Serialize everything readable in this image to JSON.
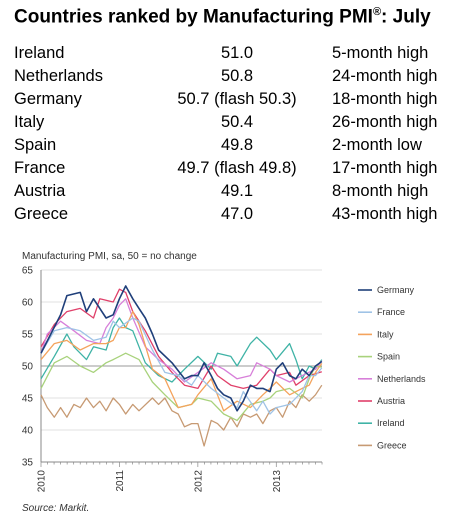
{
  "header": {
    "title": "Countries ranked by Manufacturing PMI",
    "title_sup": "®",
    "title_suffix": ": July"
  },
  "table": {
    "rows": [
      {
        "country": "Ireland",
        "value": "51.0",
        "note": "5-month high"
      },
      {
        "country": "Netherlands",
        "value": "50.8",
        "note": "24-month high"
      },
      {
        "country": "Germany",
        "value": "50.7 (flash 50.3)",
        "note": "18-month high"
      },
      {
        "country": "Italy",
        "value": "50.4",
        "note": "26-month high"
      },
      {
        "country": "Spain",
        "value": "49.8",
        "note": "2-month low"
      },
      {
        "country": "France",
        "value": "49.7 (flash 49.8)",
        "note": "17-month high"
      },
      {
        "country": "Austria",
        "value": "49.1",
        "note": "8-month high"
      },
      {
        "country": "Greece",
        "value": "47.0",
        "note": "43-month high"
      }
    ]
  },
  "source": "Source: Markit.",
  "chart_data": {
    "type": "line",
    "title": "Manufacturing PMI, sa, 50 = no change",
    "xlabel": "",
    "ylabel": "",
    "ylim": [
      35,
      65
    ],
    "yticks": [
      "65",
      "60",
      "55",
      "50",
      "45",
      "40",
      "35"
    ],
    "yticks_values": [
      65,
      60,
      55,
      50,
      45,
      40,
      35
    ],
    "xticks": [
      "2010",
      "2011",
      "2012",
      "2013"
    ],
    "xticks_values": [
      2010,
      2011,
      2012,
      2013
    ],
    "xlim": [
      2010.0,
      2013.583
    ],
    "reference_line": 50,
    "grid": true,
    "legend_position": "right",
    "series": [
      {
        "name": "Germany",
        "color": "#1f3f7a",
        "points": [
          [
            2010.0,
            52.0
          ],
          [
            2010.25,
            58.0
          ],
          [
            2010.33,
            61.0
          ],
          [
            2010.5,
            61.5
          ],
          [
            2010.58,
            58.5
          ],
          [
            2010.67,
            60.5
          ],
          [
            2010.83,
            57.5
          ],
          [
            2010.92,
            58.0
          ],
          [
            2011.0,
            60.5
          ],
          [
            2011.08,
            62.5
          ],
          [
            2011.17,
            60.5
          ],
          [
            2011.25,
            59.0
          ],
          [
            2011.33,
            57.5
          ],
          [
            2011.42,
            55.0
          ],
          [
            2011.5,
            52.5
          ],
          [
            2011.67,
            50.5
          ],
          [
            2011.83,
            48.0
          ],
          [
            2011.92,
            48.5
          ],
          [
            2012.0,
            48.5
          ],
          [
            2012.08,
            50.5
          ],
          [
            2012.17,
            48.5
          ],
          [
            2012.25,
            46.5
          ],
          [
            2012.33,
            45.5
          ],
          [
            2012.42,
            45.0
          ],
          [
            2012.5,
            43.0
          ],
          [
            2012.58,
            44.5
          ],
          [
            2012.67,
            47.0
          ],
          [
            2012.75,
            46.5
          ],
          [
            2012.83,
            46.5
          ],
          [
            2012.92,
            46.0
          ],
          [
            2013.0,
            49.5
          ],
          [
            2013.08,
            50.5
          ],
          [
            2013.17,
            48.5
          ],
          [
            2013.25,
            48.0
          ],
          [
            2013.33,
            49.5
          ],
          [
            2013.42,
            48.5
          ],
          [
            2013.5,
            50.0
          ],
          [
            2013.58,
            50.7
          ]
        ]
      },
      {
        "name": "France",
        "color": "#9fc3e6",
        "points": [
          [
            2010.0,
            52.0
          ],
          [
            2010.17,
            55.5
          ],
          [
            2010.33,
            56.0
          ],
          [
            2010.5,
            55.5
          ],
          [
            2010.67,
            54.0
          ],
          [
            2010.83,
            54.5
          ],
          [
            2010.92,
            57.0
          ],
          [
            2011.0,
            56.0
          ],
          [
            2011.17,
            57.5
          ],
          [
            2011.25,
            57.0
          ],
          [
            2011.42,
            52.5
          ],
          [
            2011.58,
            49.0
          ],
          [
            2011.75,
            48.5
          ],
          [
            2011.92,
            47.0
          ],
          [
            2012.0,
            48.5
          ],
          [
            2012.17,
            46.5
          ],
          [
            2012.33,
            45.0
          ],
          [
            2012.5,
            43.5
          ],
          [
            2012.58,
            46.0
          ],
          [
            2012.75,
            43.0
          ],
          [
            2012.83,
            44.5
          ],
          [
            2012.92,
            42.5
          ],
          [
            2013.0,
            43.5
          ],
          [
            2013.17,
            44.0
          ],
          [
            2013.33,
            46.0
          ],
          [
            2013.42,
            48.5
          ],
          [
            2013.5,
            48.5
          ],
          [
            2013.58,
            49.7
          ]
        ]
      },
      {
        "name": "Italy",
        "color": "#f4a35c",
        "points": [
          [
            2010.0,
            51.0
          ],
          [
            2010.17,
            53.5
          ],
          [
            2010.33,
            54.0
          ],
          [
            2010.5,
            52.5
          ],
          [
            2010.67,
            53.5
          ],
          [
            2010.83,
            53.5
          ],
          [
            2010.92,
            54.0
          ],
          [
            2011.0,
            56.0
          ],
          [
            2011.08,
            56.0
          ],
          [
            2011.17,
            58.5
          ],
          [
            2011.25,
            56.5
          ],
          [
            2011.42,
            49.5
          ],
          [
            2011.58,
            48.0
          ],
          [
            2011.75,
            43.5
          ],
          [
            2011.92,
            44.0
          ],
          [
            2012.0,
            45.5
          ],
          [
            2012.17,
            48.0
          ],
          [
            2012.33,
            43.0
          ],
          [
            2012.5,
            44.5
          ],
          [
            2012.67,
            43.5
          ],
          [
            2012.83,
            45.5
          ],
          [
            2012.92,
            46.5
          ],
          [
            2013.0,
            47.5
          ],
          [
            2013.17,
            45.5
          ],
          [
            2013.33,
            46.5
          ],
          [
            2013.42,
            47.0
          ],
          [
            2013.5,
            49.0
          ],
          [
            2013.58,
            50.4
          ]
        ]
      },
      {
        "name": "Spain",
        "color": "#a8d27c",
        "points": [
          [
            2010.0,
            46.5
          ],
          [
            2010.17,
            50.5
          ],
          [
            2010.33,
            51.5
          ],
          [
            2010.5,
            50.0
          ],
          [
            2010.67,
            49.0
          ],
          [
            2010.83,
            50.5
          ],
          [
            2010.92,
            51.0
          ],
          [
            2011.0,
            51.5
          ],
          [
            2011.08,
            52.0
          ],
          [
            2011.25,
            51.0
          ],
          [
            2011.42,
            47.5
          ],
          [
            2011.58,
            45.5
          ],
          [
            2011.75,
            43.5
          ],
          [
            2011.92,
            44.0
          ],
          [
            2012.0,
            45.0
          ],
          [
            2012.17,
            44.5
          ],
          [
            2012.33,
            42.5
          ],
          [
            2012.5,
            41.5
          ],
          [
            2012.67,
            44.0
          ],
          [
            2012.83,
            44.5
          ],
          [
            2012.92,
            45.0
          ],
          [
            2013.0,
            46.0
          ],
          [
            2013.17,
            46.5
          ],
          [
            2013.33,
            45.0
          ],
          [
            2013.42,
            48.0
          ],
          [
            2013.5,
            50.0
          ],
          [
            2013.58,
            49.8
          ]
        ]
      },
      {
        "name": "Netherlands",
        "color": "#d77fd9",
        "points": [
          [
            2010.0,
            52.0
          ],
          [
            2010.08,
            55.0
          ],
          [
            2010.25,
            57.0
          ],
          [
            2010.42,
            55.5
          ],
          [
            2010.58,
            54.0
          ],
          [
            2010.75,
            53.5
          ],
          [
            2010.83,
            56.0
          ],
          [
            2010.92,
            57.5
          ],
          [
            2011.0,
            59.5
          ],
          [
            2011.08,
            60.5
          ],
          [
            2011.17,
            57.5
          ],
          [
            2011.33,
            53.0
          ],
          [
            2011.5,
            51.0
          ],
          [
            2011.67,
            49.5
          ],
          [
            2011.83,
            47.5
          ],
          [
            2012.0,
            49.0
          ],
          [
            2012.17,
            50.5
          ],
          [
            2012.33,
            49.5
          ],
          [
            2012.5,
            48.0
          ],
          [
            2012.67,
            48.5
          ],
          [
            2012.75,
            50.5
          ],
          [
            2012.92,
            49.5
          ],
          [
            2013.0,
            48.5
          ],
          [
            2013.17,
            47.5
          ],
          [
            2013.33,
            48.5
          ],
          [
            2013.5,
            49.5
          ],
          [
            2013.58,
            50.8
          ]
        ]
      },
      {
        "name": "Austria",
        "color": "#e0406a",
        "points": [
          [
            2010.0,
            53.0
          ],
          [
            2010.17,
            56.5
          ],
          [
            2010.33,
            58.5
          ],
          [
            2010.5,
            59.0
          ],
          [
            2010.67,
            57.5
          ],
          [
            2010.75,
            60.5
          ],
          [
            2010.92,
            60.0
          ],
          [
            2011.0,
            62.0
          ],
          [
            2011.08,
            61.5
          ],
          [
            2011.17,
            58.5
          ],
          [
            2011.33,
            55.5
          ],
          [
            2011.5,
            51.5
          ],
          [
            2011.67,
            49.0
          ],
          [
            2011.83,
            47.0
          ],
          [
            2012.0,
            46.5
          ],
          [
            2012.17,
            50.0
          ],
          [
            2012.25,
            48.5
          ],
          [
            2012.42,
            47.0
          ],
          [
            2012.58,
            46.5
          ],
          [
            2012.75,
            47.0
          ],
          [
            2012.92,
            49.5
          ],
          [
            2013.0,
            48.5
          ],
          [
            2013.17,
            49.0
          ],
          [
            2013.25,
            47.0
          ],
          [
            2013.42,
            48.5
          ],
          [
            2013.58,
            49.1
          ]
        ]
      },
      {
        "name": "Ireland",
        "color": "#3fb3a6",
        "points": [
          [
            2010.0,
            48.0
          ],
          [
            2010.17,
            51.5
          ],
          [
            2010.33,
            55.0
          ],
          [
            2010.42,
            53.0
          ],
          [
            2010.58,
            51.0
          ],
          [
            2010.67,
            53.0
          ],
          [
            2010.83,
            52.5
          ],
          [
            2010.92,
            56.0
          ],
          [
            2011.0,
            57.5
          ],
          [
            2011.08,
            56.0
          ],
          [
            2011.17,
            55.5
          ],
          [
            2011.33,
            50.5
          ],
          [
            2011.5,
            48.5
          ],
          [
            2011.67,
            47.5
          ],
          [
            2011.83,
            49.5
          ],
          [
            2012.0,
            51.5
          ],
          [
            2012.17,
            49.5
          ],
          [
            2012.25,
            52.0
          ],
          [
            2012.42,
            51.5
          ],
          [
            2012.5,
            50.0
          ],
          [
            2012.67,
            53.5
          ],
          [
            2012.75,
            54.5
          ],
          [
            2012.92,
            52.5
          ],
          [
            2013.0,
            51.0
          ],
          [
            2013.17,
            53.5
          ],
          [
            2013.25,
            51.0
          ],
          [
            2013.33,
            48.0
          ],
          [
            2013.42,
            50.0
          ],
          [
            2013.5,
            49.5
          ],
          [
            2013.58,
            51.0
          ]
        ]
      },
      {
        "name": "Greece",
        "color": "#c79a73",
        "points": [
          [
            2010.0,
            45.5
          ],
          [
            2010.08,
            43.5
          ],
          [
            2010.17,
            42.0
          ],
          [
            2010.25,
            43.5
          ],
          [
            2010.33,
            42.0
          ],
          [
            2010.42,
            44.0
          ],
          [
            2010.5,
            43.5
          ],
          [
            2010.58,
            45.0
          ],
          [
            2010.67,
            43.5
          ],
          [
            2010.75,
            44.5
          ],
          [
            2010.83,
            43.0
          ],
          [
            2010.92,
            45.0
          ],
          [
            2011.0,
            44.0
          ],
          [
            2011.08,
            42.5
          ],
          [
            2011.17,
            44.0
          ],
          [
            2011.25,
            43.0
          ],
          [
            2011.42,
            45.0
          ],
          [
            2011.5,
            44.0
          ],
          [
            2011.58,
            45.0
          ],
          [
            2011.67,
            43.0
          ],
          [
            2011.75,
            42.5
          ],
          [
            2011.83,
            40.5
          ],
          [
            2011.92,
            41.0
          ],
          [
            2012.0,
            41.0
          ],
          [
            2012.08,
            37.5
          ],
          [
            2012.17,
            41.5
          ],
          [
            2012.25,
            41.0
          ],
          [
            2012.33,
            40.0
          ],
          [
            2012.42,
            42.0
          ],
          [
            2012.5,
            40.5
          ],
          [
            2012.58,
            42.5
          ],
          [
            2012.67,
            42.0
          ],
          [
            2012.75,
            42.5
          ],
          [
            2012.83,
            41.0
          ],
          [
            2012.92,
            43.0
          ],
          [
            2013.0,
            43.5
          ],
          [
            2013.08,
            42.0
          ],
          [
            2013.17,
            44.5
          ],
          [
            2013.25,
            43.5
          ],
          [
            2013.33,
            45.5
          ],
          [
            2013.42,
            44.5
          ],
          [
            2013.5,
            45.5
          ],
          [
            2013.58,
            47.0
          ]
        ]
      }
    ]
  }
}
